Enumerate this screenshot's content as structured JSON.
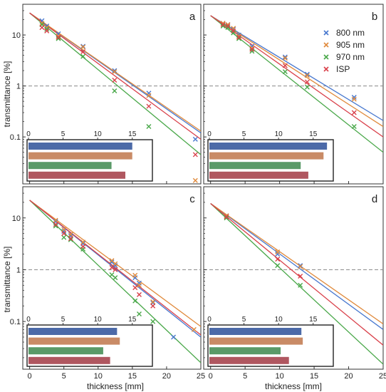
{
  "chart_data": {
    "type": "scatter",
    "xlabel": "thickness [mm]",
    "ylabel": "transmittance [%]",
    "xlim": [
      -1,
      25
    ],
    "ylim": [
      0.012,
      40
    ],
    "yscale": "log",
    "x_ticks": [
      0,
      5,
      10,
      15,
      20,
      25
    ],
    "y_ticks": [
      {
        "value": 10,
        "label": "10"
      },
      {
        "value": 1,
        "label": "1"
      },
      {
        "value": 0.1,
        "label": "0.1"
      }
    ],
    "inset_ticks": [
      0,
      5,
      10,
      15
    ],
    "reference_line": 1,
    "grid": false,
    "legend": {
      "location": "top-right of panel b",
      "entries": [
        "800 nm",
        "905 nm",
        "970 nm",
        "ISP"
      ]
    },
    "colors": {
      "800 nm": "#4878cf",
      "905 nm": "#e08a3c",
      "970 nm": "#4aa84a",
      "ISP": "#d9404a"
    },
    "inset_colors": {
      "800 nm": "#4c6aa8",
      "905 nm": "#c98b66",
      "970 nm": "#5a9a68",
      "ISP": "#b05760"
    },
    "panels": [
      {
        "label": "a",
        "series": [
          {
            "name": "800 nm",
            "points": [
              [
                1.8,
                19
              ],
              [
                2.5,
                15
              ],
              [
                4.2,
                10.5
              ],
              [
                7.8,
                6.0
              ],
              [
                12.4,
                2.0
              ],
              [
                17.4,
                0.72
              ],
              [
                24.2,
                0.09
              ]
            ],
            "fit": [
              [
                0,
                27
              ],
              [
                25,
                0.12
              ]
            ]
          },
          {
            "name": "905 nm",
            "points": [
              [
                1.8,
                17
              ],
              [
                2.5,
                14
              ],
              [
                4.2,
                9.5
              ],
              [
                7.8,
                5.8
              ],
              [
                12.4,
                1.9
              ],
              [
                17.4,
                0.65
              ],
              [
                24.2,
                0.014
              ]
            ],
            "fit": [
              [
                0,
                27
              ],
              [
                25,
                0.13
              ]
            ]
          },
          {
            "name": "970 nm",
            "points": [
              [
                1.8,
                16
              ],
              [
                2.5,
                13
              ],
              [
                4.2,
                8.5
              ],
              [
                7.8,
                3.8
              ],
              [
                12.4,
                0.8
              ],
              [
                17.4,
                0.16
              ]
            ],
            "fit": [
              [
                0,
                27
              ],
              [
                25,
                0.045
              ]
            ]
          },
          {
            "name": "ISP",
            "points": [
              [
                1.8,
                14
              ],
              [
                2.5,
                12
              ],
              [
                4.2,
                9.0
              ],
              [
                7.8,
                4.7
              ],
              [
                12.4,
                1.3
              ],
              [
                17.4,
                0.4
              ],
              [
                24.2,
                0.045
              ]
            ],
            "fit": [
              [
                0,
                27
              ],
              [
                25,
                0.09
              ]
            ]
          }
        ],
        "inset_bars": {
          "800 nm": 15.0,
          "905 nm": 15.0,
          "970 nm": 12.0,
          "ISP": 14.0
        }
      },
      {
        "label": "b",
        "series": [
          {
            "name": "800 nm",
            "points": [
              [
                1.8,
                17
              ],
              [
                2.5,
                16
              ],
              [
                3.3,
                13
              ],
              [
                4.1,
                10
              ],
              [
                6.0,
                6.0
              ],
              [
                10.8,
                3.7
              ],
              [
                14.0,
                1.7
              ],
              [
                20.8,
                0.6
              ]
            ],
            "fit": [
              [
                0,
                24
              ],
              [
                25,
                0.21
              ]
            ]
          },
          {
            "name": "905 nm",
            "points": [
              [
                1.8,
                17
              ],
              [
                2.5,
                16
              ],
              [
                3.3,
                13.5
              ],
              [
                4.1,
                9.5
              ],
              [
                6.0,
                5.5
              ],
              [
                10.8,
                3.5
              ],
              [
                14.0,
                1.6
              ],
              [
                20.8,
                0.55
              ]
            ],
            "fit": [
              [
                0,
                24
              ],
              [
                25,
                0.16
              ]
            ]
          },
          {
            "name": "970 nm",
            "points": [
              [
                1.8,
                15
              ],
              [
                2.5,
                14
              ],
              [
                3.3,
                11
              ],
              [
                4.1,
                8.5
              ],
              [
                6.0,
                4.8
              ],
              [
                10.8,
                1.9
              ],
              [
                14.0,
                0.95
              ],
              [
                20.8,
                0.16
              ]
            ],
            "fit": [
              [
                0,
                24
              ],
              [
                25,
                0.05
              ]
            ]
          },
          {
            "name": "ISP",
            "points": [
              [
                1.8,
                16
              ],
              [
                2.5,
                15
              ],
              [
                3.3,
                12
              ],
              [
                4.1,
                9.0
              ],
              [
                6.0,
                5.2
              ],
              [
                10.8,
                2.5
              ],
              [
                14.0,
                1.2
              ],
              [
                20.8,
                0.3
              ]
            ],
            "fit": [
              [
                0,
                24
              ],
              [
                25,
                0.1
              ]
            ]
          }
        ],
        "inset_bars": {
          "800 nm": 17.0,
          "905 nm": 16.5,
          "970 nm": 13.2,
          "ISP": 14.3
        }
      },
      {
        "label": "c",
        "series": [
          {
            "name": "800 nm",
            "points": [
              [
                3.8,
                8.5
              ],
              [
                5.0,
                5.5
              ],
              [
                6.0,
                4.5
              ],
              [
                7.8,
                3.2
              ],
              [
                12.0,
                1.4
              ],
              [
                12.5,
                1.2
              ],
              [
                15.4,
                0.7
              ],
              [
                16.0,
                0.55
              ],
              [
                18.0,
                0.23
              ],
              [
                21.0,
                0.05
              ]
            ],
            "fit": [
              [
                0,
                22
              ],
              [
                25,
                0.05
              ]
            ]
          },
          {
            "name": "905 nm",
            "points": [
              [
                3.8,
                9.0
              ],
              [
                5.0,
                6.0
              ],
              [
                6.0,
                4.8
              ],
              [
                7.8,
                3.4
              ],
              [
                12.0,
                1.5
              ],
              [
                12.5,
                1.3
              ],
              [
                15.4,
                0.78
              ],
              [
                16.0,
                0.5
              ],
              [
                18.0,
                0.24
              ],
              [
                24.0,
                0.07
              ]
            ],
            "fit": [
              [
                0,
                22
              ],
              [
                25,
                0.08
              ]
            ]
          },
          {
            "name": "970 nm",
            "points": [
              [
                3.8,
                7.0
              ],
              [
                5.0,
                4.2
              ],
              [
                6.0,
                3.8
              ],
              [
                7.8,
                2.5
              ],
              [
                12.0,
                0.8
              ],
              [
                12.5,
                0.7
              ],
              [
                15.4,
                0.25
              ],
              [
                16.0,
                0.14
              ],
              [
                18.0,
                0.1
              ]
            ],
            "fit": [
              [
                0,
                22
              ],
              [
                25,
                0.016
              ]
            ]
          },
          {
            "name": "ISP",
            "points": [
              [
                3.8,
                7.5
              ],
              [
                5.0,
                5.0
              ],
              [
                6.0,
                4.0
              ],
              [
                7.8,
                2.8
              ],
              [
                12.0,
                1.1
              ],
              [
                12.5,
                1.0
              ],
              [
                15.4,
                0.45
              ],
              [
                16.0,
                0.33
              ],
              [
                18.0,
                0.2
              ]
            ],
            "fit": [
              [
                0,
                22
              ],
              [
                25,
                0.055
              ]
            ]
          }
        ],
        "inset_bars": {
          "800 nm": 12.8,
          "905 nm": 13.2,
          "970 nm": 10.8,
          "ISP": 11.8
        }
      },
      {
        "label": "d",
        "series": [
          {
            "name": "800 nm",
            "points": [
              [
                2.3,
                11
              ],
              [
                9.7,
                2.0
              ],
              [
                13.0,
                1.2
              ]
            ],
            "fit": [
              [
                0,
                19
              ],
              [
                25,
                0.07
              ]
            ]
          },
          {
            "name": "905 nm",
            "points": [
              [
                2.3,
                11
              ],
              [
                9.7,
                2.2
              ],
              [
                13.0,
                1.15
              ]
            ],
            "fit": [
              [
                0,
                19
              ],
              [
                25,
                0.09
              ]
            ]
          },
          {
            "name": "970 nm",
            "points": [
              [
                2.3,
                10
              ],
              [
                9.7,
                1.2
              ],
              [
                13.0,
                0.5
              ]
            ],
            "fit": [
              [
                0,
                19
              ],
              [
                25,
                0.015
              ]
            ]
          },
          {
            "name": "ISP",
            "points": [
              [
                2.3,
                10.5
              ],
              [
                9.7,
                1.6
              ],
              [
                13.0,
                0.75
              ]
            ],
            "fit": [
              [
                0,
                19
              ],
              [
                25,
                0.035
              ]
            ]
          }
        ],
        "inset_bars": {
          "800 nm": 13.3,
          "905 nm": 13.5,
          "970 nm": 10.3,
          "ISP": 11.5
        }
      }
    ]
  }
}
